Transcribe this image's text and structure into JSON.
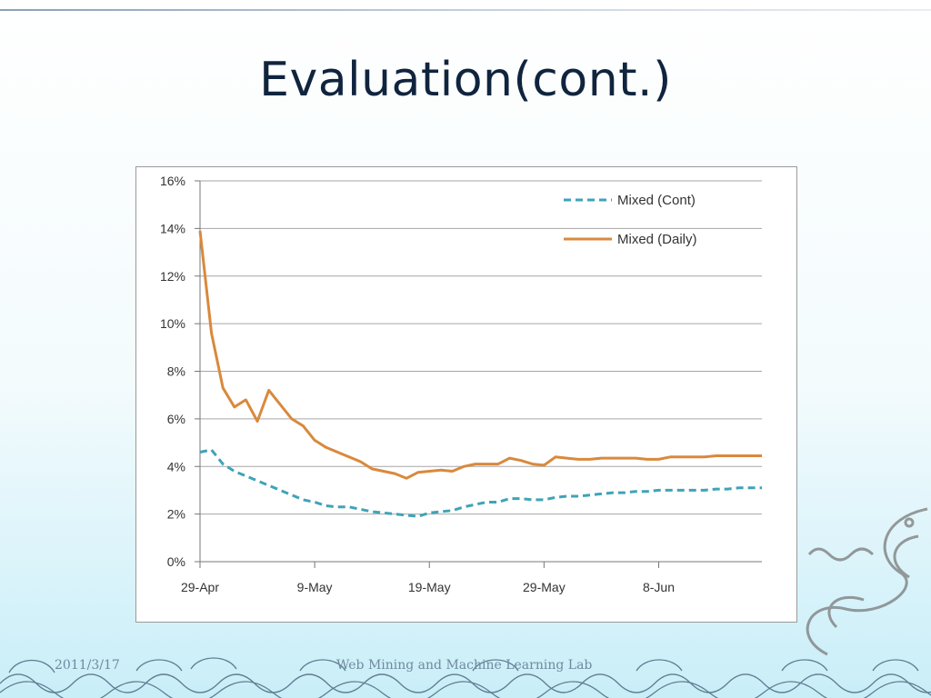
{
  "slide": {
    "title": "Evaluation(cont.)",
    "footer_date": "2011/3/17",
    "footer_lab": "Web Mining and Machine Learning Lab"
  },
  "colors": {
    "cont": "#3fa3b8",
    "daily": "#d9893c",
    "grid": "#a6a6a6",
    "title": "#10243e"
  },
  "chart_data": {
    "type": "line",
    "title": "",
    "xlabel": "",
    "ylabel": "",
    "x_tick_labels": [
      "29-Apr",
      "9-May",
      "19-May",
      "29-May",
      "8-Jun"
    ],
    "y_tick_labels": [
      "0%",
      "2%",
      "4%",
      "6%",
      "8%",
      "10%",
      "12%",
      "14%",
      "16%"
    ],
    "ylim": [
      0,
      16
    ],
    "grid": "horizontal",
    "legend": "top-right",
    "series": [
      {
        "name": "Mixed (Cont)",
        "style": "dashed",
        "x": [
          "29-Apr",
          "30-Apr",
          "1-May",
          "2-May",
          "3-May",
          "4-May",
          "5-May",
          "6-May",
          "7-May",
          "8-May",
          "9-May",
          "10-May",
          "11-May",
          "12-May",
          "13-May",
          "14-May",
          "15-May",
          "16-May",
          "17-May",
          "18-May",
          "19-May",
          "20-May",
          "21-May",
          "22-May",
          "23-May",
          "24-May",
          "25-May",
          "26-May",
          "27-May",
          "28-May",
          "29-May",
          "30-May",
          "31-May",
          "1-Jun",
          "2-Jun",
          "3-Jun",
          "4-Jun",
          "5-Jun",
          "6-Jun",
          "7-Jun",
          "8-Jun",
          "9-Jun",
          "10-Jun",
          "11-Jun",
          "12-Jun",
          "13-Jun",
          "14-Jun",
          "15-Jun",
          "16-Jun",
          "17-Jun"
        ],
        "values": [
          4.6,
          4.7,
          4.1,
          3.8,
          3.6,
          3.4,
          3.2,
          3.0,
          2.8,
          2.6,
          2.5,
          2.35,
          2.3,
          2.3,
          2.2,
          2.1,
          2.05,
          2.0,
          1.95,
          1.9,
          2.05,
          2.1,
          2.15,
          2.3,
          2.4,
          2.5,
          2.5,
          2.65,
          2.65,
          2.6,
          2.6,
          2.7,
          2.75,
          2.75,
          2.8,
          2.85,
          2.9,
          2.9,
          2.95,
          2.95,
          3.0,
          3.0,
          3.0,
          3.0,
          3.0,
          3.05,
          3.05,
          3.1,
          3.1,
          3.1
        ]
      },
      {
        "name": "Mixed (Daily)",
        "style": "solid",
        "x": [
          "29-Apr",
          "30-Apr",
          "1-May",
          "2-May",
          "3-May",
          "4-May",
          "5-May",
          "6-May",
          "7-May",
          "8-May",
          "9-May",
          "10-May",
          "11-May",
          "12-May",
          "13-May",
          "14-May",
          "15-May",
          "16-May",
          "17-May",
          "18-May",
          "19-May",
          "20-May",
          "21-May",
          "22-May",
          "23-May",
          "24-May",
          "25-May",
          "26-May",
          "27-May",
          "28-May",
          "29-May",
          "30-May",
          "31-May",
          "1-Jun",
          "2-Jun",
          "3-Jun",
          "4-Jun",
          "5-Jun",
          "6-Jun",
          "7-Jun",
          "8-Jun",
          "9-Jun",
          "10-Jun",
          "11-Jun",
          "12-Jun",
          "13-Jun",
          "14-Jun",
          "15-Jun",
          "16-Jun",
          "17-Jun"
        ],
        "values": [
          13.9,
          9.6,
          7.3,
          6.5,
          6.8,
          5.9,
          7.2,
          6.6,
          6.0,
          5.7,
          5.1,
          4.8,
          4.6,
          4.4,
          4.2,
          3.9,
          3.8,
          3.7,
          3.5,
          3.75,
          3.8,
          3.85,
          3.8,
          4.0,
          4.1,
          4.1,
          4.1,
          4.35,
          4.25,
          4.1,
          4.05,
          4.4,
          4.35,
          4.3,
          4.3,
          4.35,
          4.35,
          4.35,
          4.35,
          4.3,
          4.3,
          4.4,
          4.4,
          4.4,
          4.4,
          4.45,
          4.45,
          4.45,
          4.45,
          4.45
        ]
      }
    ]
  }
}
